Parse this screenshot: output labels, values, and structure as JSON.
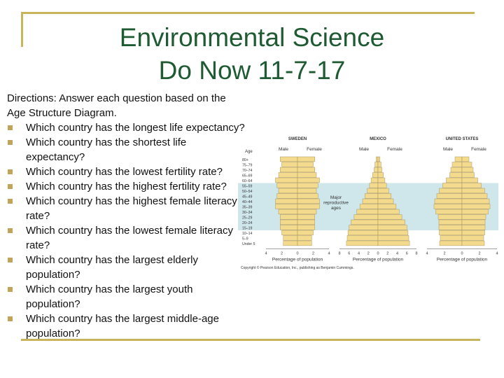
{
  "title": {
    "line1": "Environmental Science",
    "line2": "Do Now 11-7-17"
  },
  "directions": "Directions: Answer each question based on the Age Structure Diagram.",
  "questions": [
    "Which country has the longest life expectancy?",
    "Which country has the shortest life expectancy?",
    "Which country has the lowest fertility rate?",
    "Which country has the highest fertility rate?",
    "Which country has the highest female literacy rate?",
    "Which country has the lowest female literacy rate?",
    "Which country has the largest elderly population?",
    "Which country has the largest youth population?",
    "Which country has the largest middle-age population?"
  ],
  "diagram": {
    "countries": [
      "SWEDEN",
      "MEXICO",
      "UNITED STATES"
    ],
    "male_label": "Male",
    "female_label": "Female",
    "age_label": "Age",
    "age_groups": [
      "80+",
      "75–79",
      "70–74",
      "65–69",
      "60–64",
      "55–59",
      "50–54",
      "45–49",
      "40–44",
      "35–39",
      "30–34",
      "25–29",
      "20–24",
      "15–19",
      "10–14",
      "5–9",
      "Under 5"
    ],
    "highlight_label": "Major reproductive ages",
    "axis_label": "Percentage of population",
    "copyright": "Copyright © Pearson Education, Inc., publishing as Benjamin Cummings.",
    "band_color": "#cfe6ea",
    "bar_color": "#f4da8c",
    "country_axis_ticks": [
      [
        "4",
        "2",
        "0",
        "2",
        "4"
      ],
      [
        "8",
        "6",
        "4",
        "2",
        "0",
        "2",
        "4",
        "6",
        "8"
      ],
      [
        "4",
        "2",
        "0",
        "2",
        "4"
      ]
    ],
    "pyramids": {
      "sweden": [
        0.55,
        0.5,
        0.55,
        0.6,
        0.7,
        0.65,
        0.6,
        0.65,
        0.7,
        0.7,
        0.6,
        0.55,
        0.55,
        0.55,
        0.5,
        0.45,
        0.45
      ],
      "mexico": [
        0.05,
        0.08,
        0.1,
        0.14,
        0.18,
        0.22,
        0.28,
        0.34,
        0.4,
        0.47,
        0.55,
        0.62,
        0.7,
        0.75,
        0.78,
        0.8,
        0.82
      ],
      "united_states": [
        0.2,
        0.28,
        0.32,
        0.35,
        0.45,
        0.55,
        0.65,
        0.72,
        0.78,
        0.8,
        0.75,
        0.68,
        0.66,
        0.66,
        0.65,
        0.62,
        0.64
      ]
    }
  }
}
